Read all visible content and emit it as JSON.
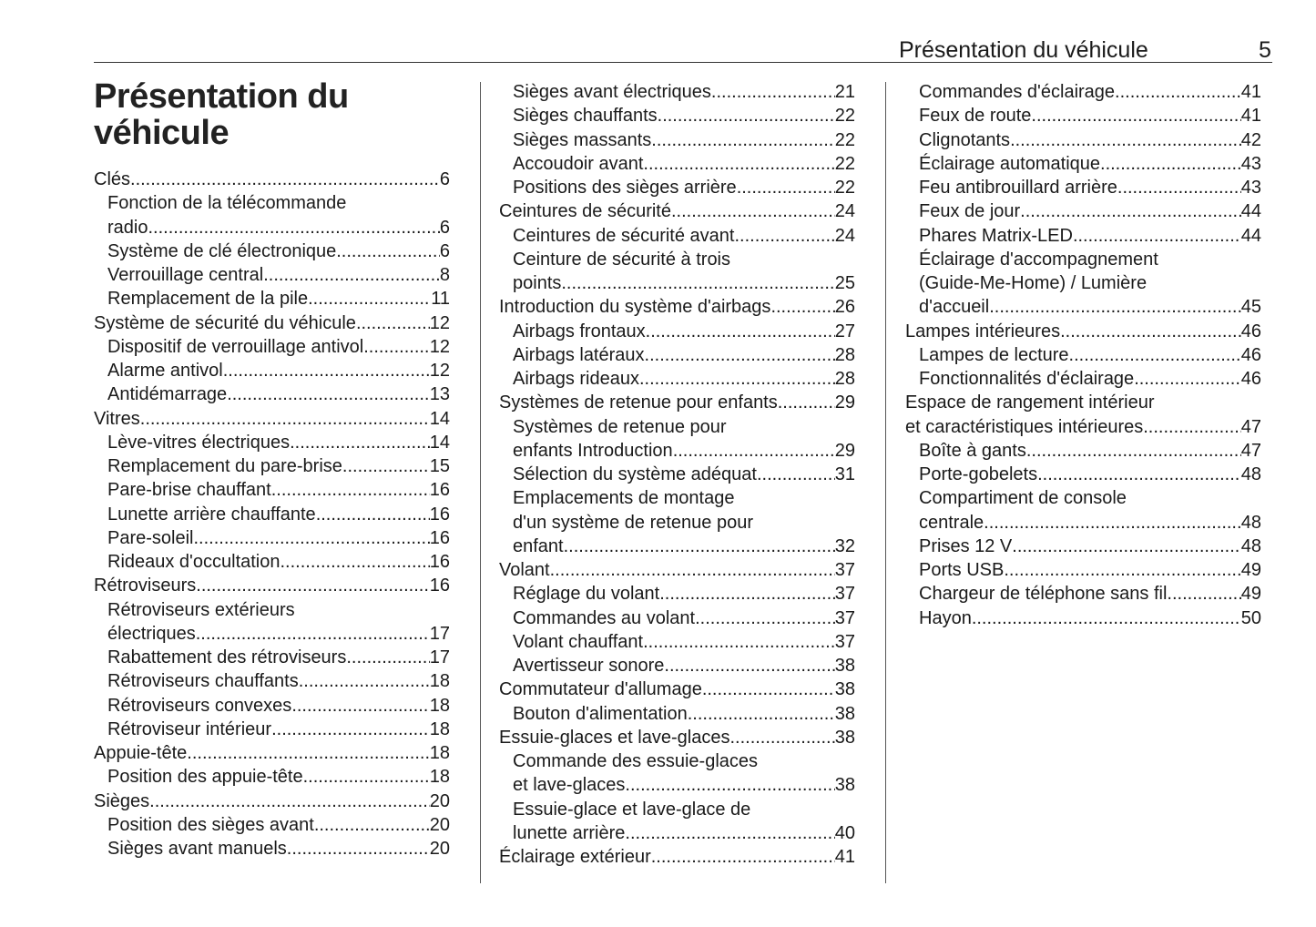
{
  "header": {
    "section": "Présentation du véhicule",
    "page_number": "5"
  },
  "title": {
    "line1": "Présentation du",
    "line2": "véhicule"
  },
  "columns": [
    [
      {
        "t": "Clés",
        "p": "6",
        "i": 0
      },
      {
        "t": "Fonction de la télécommande",
        "p": "",
        "i": 1
      },
      {
        "t": "radio",
        "p": "6",
        "i": 1
      },
      {
        "t": "Système de clé électronique",
        "p": "6",
        "i": 1
      },
      {
        "t": "Verrouillage central",
        "p": "8",
        "i": 1
      },
      {
        "t": "Remplacement de la pile",
        "p": "11",
        "i": 1
      },
      {
        "t": "Système de sécurité du véhicule",
        "p": "12",
        "i": 0
      },
      {
        "t": "Dispositif de verrouillage antivol ",
        "p": "12",
        "i": 1
      },
      {
        "t": "Alarme antivol",
        "p": "12",
        "i": 1
      },
      {
        "t": "Antidémarrage",
        "p": "13",
        "i": 1
      },
      {
        "t": "Vitres ",
        "p": "14",
        "i": 0
      },
      {
        "t": "Lève-vitres électriques",
        "p": "14",
        "i": 1
      },
      {
        "t": "Remplacement du pare-brise",
        "p": "15",
        "i": 1
      },
      {
        "t": "Pare-brise chauffant",
        "p": "16",
        "i": 1
      },
      {
        "t": "Lunette arrière chauffante",
        "p": "16",
        "i": 1
      },
      {
        "t": "Pare-soleil",
        "p": "16",
        "i": 1
      },
      {
        "t": "Rideaux d'occultation",
        "p": "16",
        "i": 1
      },
      {
        "t": "Rétroviseurs",
        "p": "16",
        "i": 0
      },
      {
        "t": "Rétroviseurs extérieurs",
        "p": "",
        "i": 1
      },
      {
        "t": "électriques ",
        "p": "17",
        "i": 1
      },
      {
        "t": "Rabattement des rétroviseurs ",
        "p": "17",
        "i": 1
      },
      {
        "t": "Rétroviseurs chauffants",
        "p": "18",
        "i": 1
      },
      {
        "t": "Rétroviseurs convexes",
        "p": "18",
        "i": 1
      },
      {
        "t": "Rétroviseur intérieur ",
        "p": "18",
        "i": 1
      },
      {
        "t": "Appuie-tête",
        "p": "18",
        "i": 0
      },
      {
        "t": "Position des appuie-tête",
        "p": "18",
        "i": 1
      },
      {
        "t": "Sièges",
        "p": "20",
        "i": 0
      },
      {
        "t": "Position des sièges avant ",
        "p": "20",
        "i": 1
      },
      {
        "t": "Sièges avant manuels ",
        "p": "20",
        "i": 1
      }
    ],
    [
      {
        "t": "Sièges avant électriques ",
        "p": "21",
        "i": 1
      },
      {
        "t": "Sièges chauffants ",
        "p": "22",
        "i": 1
      },
      {
        "t": "Sièges massants ",
        "p": "22",
        "i": 1
      },
      {
        "t": "Accoudoir avant",
        "p": "22",
        "i": 1
      },
      {
        "t": "Positions des sièges arrière ",
        "p": "22",
        "i": 1
      },
      {
        "t": "Ceintures de sécurité",
        "p": "24",
        "i": 0
      },
      {
        "t": "Ceintures de sécurité avant",
        "p": "24",
        "i": 1
      },
      {
        "t": "Ceinture de sécurité à trois",
        "p": "",
        "i": 1
      },
      {
        "t": "points",
        "p": "25",
        "i": 1
      },
      {
        "t": "Introduction du système d'airbags",
        "p": "26",
        "i": 0
      },
      {
        "t": "Airbags frontaux ",
        "p": "27",
        "i": 1
      },
      {
        "t": "Airbags latéraux ",
        "p": "28",
        "i": 1
      },
      {
        "t": "Airbags rideaux ",
        "p": "28",
        "i": 1
      },
      {
        "t": "Systèmes de retenue pour enfants",
        "p": "29",
        "i": 0
      },
      {
        "t": "Systèmes de retenue pour",
        "p": "",
        "i": 1
      },
      {
        "t": "enfants Introduction ",
        "p": "29",
        "i": 1
      },
      {
        "t": "Sélection du système adéquat",
        "p": "31",
        "i": 1
      },
      {
        "t": "Emplacements de montage",
        "p": "",
        "i": 1
      },
      {
        "t": "d'un système de retenue pour",
        "p": "",
        "i": 1
      },
      {
        "t": "enfant",
        "p": "32",
        "i": 1
      },
      {
        "t": "Volant",
        "p": "37",
        "i": 0
      },
      {
        "t": "Réglage du volant",
        "p": "37",
        "i": 1
      },
      {
        "t": "Commandes au volant",
        "p": "37",
        "i": 1
      },
      {
        "t": "Volant chauffant",
        "p": "37",
        "i": 1
      },
      {
        "t": "Avertisseur sonore",
        "p": "38",
        "i": 1
      },
      {
        "t": "Commutateur d'allumage",
        "p": "38",
        "i": 0
      },
      {
        "t": "Bouton d'alimentation",
        "p": "38",
        "i": 1
      },
      {
        "t": "Essuie-glaces et lave-glaces",
        "p": "38",
        "i": 0
      },
      {
        "t": "Commande des essuie-glaces",
        "p": "",
        "i": 1
      },
      {
        "t": "et lave-glaces ",
        "p": "38",
        "i": 1
      },
      {
        "t": "Essuie-glace et lave-glace de",
        "p": "",
        "i": 1
      },
      {
        "t": "lunette arrière",
        "p": "40",
        "i": 1
      },
      {
        "t": "Éclairage extérieur",
        "p": "41",
        "i": 0
      }
    ],
    [
      {
        "t": "Commandes d'éclairage ",
        "p": "41",
        "i": 1
      },
      {
        "t": "Feux de route ",
        "p": "41",
        "i": 1
      },
      {
        "t": "Clignotants ",
        "p": "42",
        "i": 1
      },
      {
        "t": "Éclairage automatique ",
        "p": "43",
        "i": 1
      },
      {
        "t": "Feu antibrouillard arrière ",
        "p": "43",
        "i": 1
      },
      {
        "t": "Feux de jour",
        "p": "44",
        "i": 1
      },
      {
        "t": "Phares Matrix-LED ",
        "p": "44",
        "i": 1
      },
      {
        "t": "Éclairage d'accompagnement",
        "p": "",
        "i": 1
      },
      {
        "t": "(Guide-Me-Home) / Lumière",
        "p": "",
        "i": 1
      },
      {
        "t": "d'accueil",
        "p": "45",
        "i": 1
      },
      {
        "t": "Lampes intérieures",
        "p": "46",
        "i": 0
      },
      {
        "t": "Lampes de lecture",
        "p": "46",
        "i": 1
      },
      {
        "t": "Fonctionnalités d'éclairage",
        "p": "46",
        "i": 1
      },
      {
        "t": "Espace de rangement intérieur",
        "p": "",
        "i": 0
      },
      {
        "t": "et caractéristiques intérieures",
        "p": "47",
        "i": 0
      },
      {
        "t": "Boîte à gants ",
        "p": "47",
        "i": 1
      },
      {
        "t": "Porte-gobelets",
        "p": "48",
        "i": 1
      },
      {
        "t": "Compartiment de console",
        "p": "",
        "i": 1
      },
      {
        "t": "centrale",
        "p": "48",
        "i": 1
      },
      {
        "t": "Prises 12 V",
        "p": "48",
        "i": 1
      },
      {
        "t": "Ports USB ",
        "p": "49",
        "i": 1
      },
      {
        "t": "Chargeur de téléphone sans fil",
        "p": "49",
        "i": 1
      },
      {
        "t": "Hayon",
        "p": "50",
        "i": 1
      }
    ]
  ]
}
